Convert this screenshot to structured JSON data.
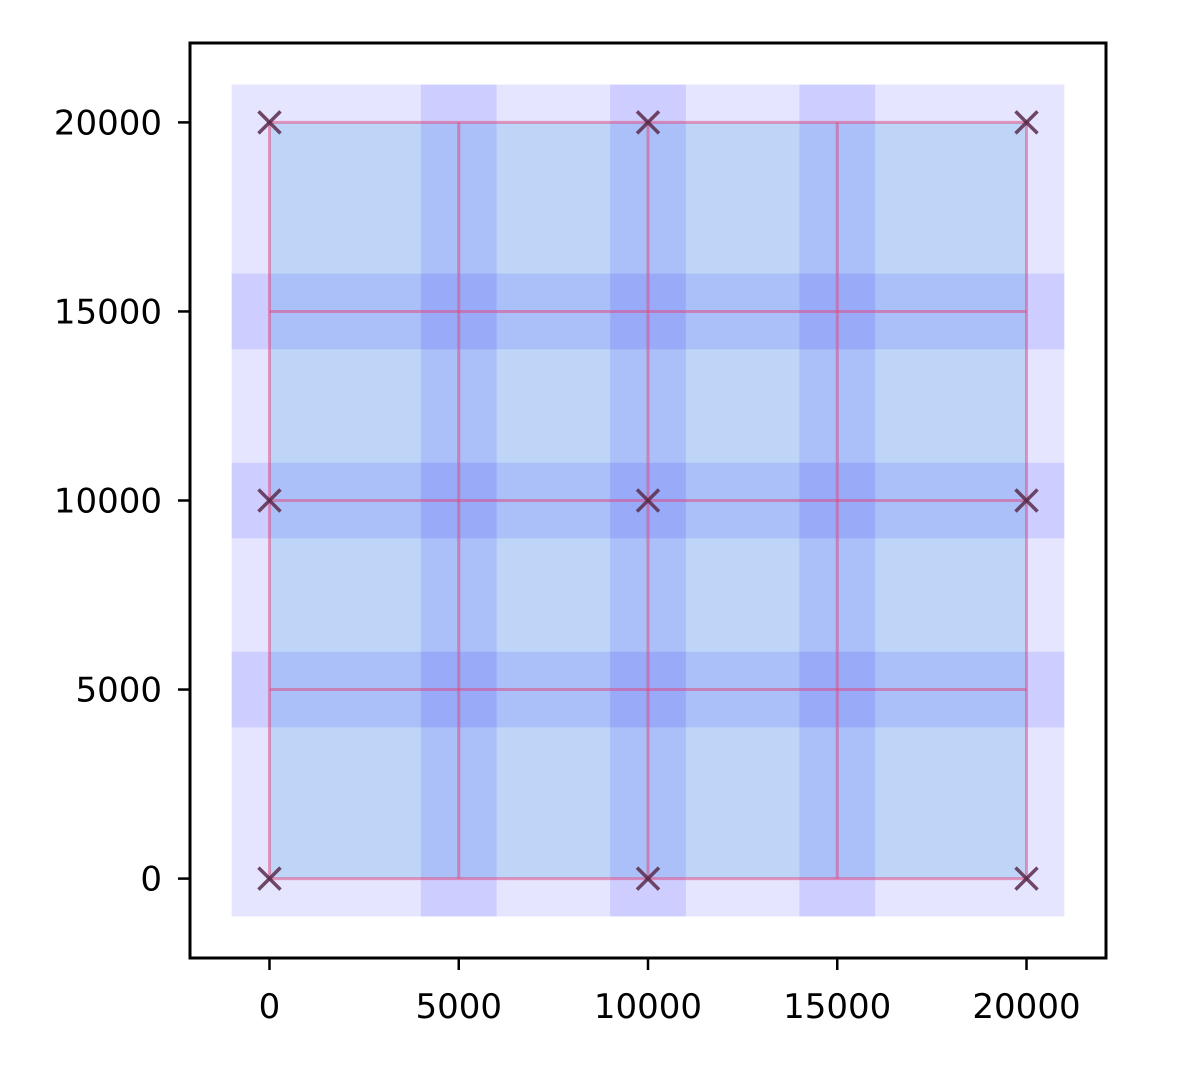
{
  "chart_data": {
    "type": "scatter",
    "title": "",
    "xlabel": "",
    "ylabel": "",
    "xlim": [
      -2100,
      22100
    ],
    "ylim": [
      -2100,
      22100
    ],
    "grid": false,
    "x_ticks": [
      0,
      5000,
      10000,
      15000,
      20000
    ],
    "y_ticks": [
      0,
      5000,
      10000,
      15000,
      20000
    ],
    "x_tick_labels": [
      "0",
      "5000",
      "10000",
      "15000",
      "20000"
    ],
    "y_tick_labels": [
      "0",
      "5000",
      "10000",
      "15000",
      "20000"
    ],
    "outer_band": {
      "x": [
        -1000,
        21000
      ],
      "y": [
        -1000,
        21000
      ],
      "color": "#0000ff",
      "opacity": 0.1
    },
    "inner_region": {
      "x": [
        0,
        20000
      ],
      "y": [
        0,
        20000
      ],
      "color": "#90c0ef",
      "opacity": 0.45
    },
    "vertical_bands": [
      {
        "x": [
          4000,
          6000
        ],
        "y": [
          -1000,
          21000
        ]
      },
      {
        "x": [
          9000,
          11000
        ],
        "y": [
          -1000,
          21000
        ]
      },
      {
        "x": [
          14000,
          16000
        ],
        "y": [
          -1000,
          21000
        ]
      }
    ],
    "horizontal_bands": [
      {
        "x": [
          -1000,
          21000
        ],
        "y": [
          4000,
          6000
        ]
      },
      {
        "x": [
          -1000,
          21000
        ],
        "y": [
          9000,
          11000
        ]
      },
      {
        "x": [
          -1000,
          21000
        ],
        "y": [
          14000,
          16000
        ]
      }
    ],
    "band_color": "#0000ff",
    "band_opacity": 0.1,
    "lines": [
      {
        "x": [
          0,
          20000
        ],
        "y": [
          0,
          0
        ]
      },
      {
        "x": [
          0,
          20000
        ],
        "y": [
          20000,
          20000
        ]
      },
      {
        "x": [
          0,
          0
        ],
        "y": [
          0,
          20000
        ]
      },
      {
        "x": [
          20000,
          20000
        ],
        "y": [
          0,
          20000
        ]
      },
      {
        "x": [
          5000,
          5000
        ],
        "y": [
          0,
          20000
        ]
      },
      {
        "x": [
          10000,
          10000
        ],
        "y": [
          0,
          20000
        ]
      },
      {
        "x": [
          15000,
          15000
        ],
        "y": [
          0,
          20000
        ]
      },
      {
        "x": [
          0,
          20000
        ],
        "y": [
          5000,
          5000
        ]
      },
      {
        "x": [
          0,
          20000
        ],
        "y": [
          10000,
          10000
        ]
      },
      {
        "x": [
          0,
          20000
        ],
        "y": [
          15000,
          15000
        ]
      }
    ],
    "line_color": "#e0457b",
    "line_opacity": 0.5,
    "points": [
      {
        "x": 0,
        "y": 0
      },
      {
        "x": 10000,
        "y": 0
      },
      {
        "x": 20000,
        "y": 0
      },
      {
        "x": 0,
        "y": 10000
      },
      {
        "x": 10000,
        "y": 10000
      },
      {
        "x": 20000,
        "y": 10000
      },
      {
        "x": 0,
        "y": 20000
      },
      {
        "x": 10000,
        "y": 20000
      },
      {
        "x": 20000,
        "y": 20000
      }
    ],
    "marker": "x",
    "marker_color": "#5a2a4a"
  }
}
